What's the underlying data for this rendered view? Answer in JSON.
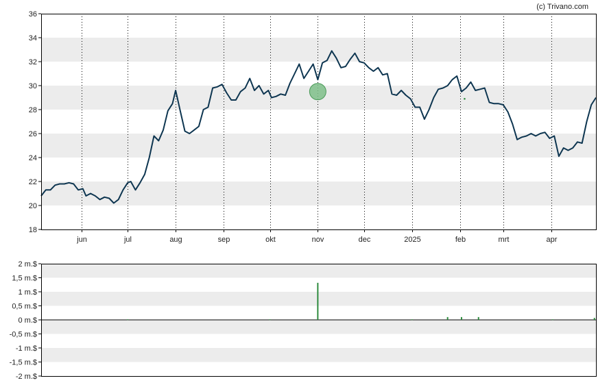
{
  "credit": "(c) Trivano.com",
  "colors": {
    "line": "#0d3550",
    "band": "#ececec",
    "volume": "#2e8b3e",
    "marker_fill": "#7fc08a",
    "marker_stroke": "#4a9a58",
    "frame": "#000000"
  },
  "chart_data": [
    {
      "type": "line",
      "title": "",
      "xlabel": "",
      "ylabel": "",
      "ylim": [
        18,
        36
      ],
      "yticks": [
        18,
        20,
        22,
        24,
        26,
        28,
        30,
        32,
        34,
        36
      ],
      "grid": "horizontal alternating bands + dotted vertical month lines",
      "xlim": [
        "2024-05-06",
        "2025-04-30"
      ],
      "x_tick_labels": [
        {
          "date": "2024-06-01",
          "label": "jun"
        },
        {
          "date": "2024-07-01",
          "label": "jul"
        },
        {
          "date": "2024-08-01",
          "label": "aug"
        },
        {
          "date": "2024-09-01",
          "label": "sep"
        },
        {
          "date": "2024-10-01",
          "label": "okt"
        },
        {
          "date": "2024-11-01",
          "label": "nov"
        },
        {
          "date": "2024-12-01",
          "label": "dec"
        },
        {
          "date": "2025-01-01",
          "label": "2025"
        },
        {
          "date": "2025-02-01",
          "label": "feb"
        },
        {
          "date": "2025-03-01",
          "label": "mrt"
        },
        {
          "date": "2025-04-01",
          "label": "apr"
        }
      ],
      "series": [
        {
          "values": [
            [
              "2024-05-06",
              20.8
            ],
            [
              "2024-05-09",
              21.3
            ],
            [
              "2024-05-12",
              21.3
            ],
            [
              "2024-05-15",
              21.7
            ],
            [
              "2024-05-18",
              21.8
            ],
            [
              "2024-05-21",
              21.8
            ],
            [
              "2024-05-24",
              21.9
            ],
            [
              "2024-05-27",
              21.8
            ],
            [
              "2024-05-30",
              21.3
            ],
            [
              "2024-06-02",
              21.4
            ],
            [
              "2024-06-04",
              20.8
            ],
            [
              "2024-06-07",
              21.0
            ],
            [
              "2024-06-10",
              20.8
            ],
            [
              "2024-06-13",
              20.5
            ],
            [
              "2024-06-16",
              20.7
            ],
            [
              "2024-06-19",
              20.6
            ],
            [
              "2024-06-22",
              20.2
            ],
            [
              "2024-06-25",
              20.5
            ],
            [
              "2024-06-28",
              21.3
            ],
            [
              "2024-07-01",
              21.9
            ],
            [
              "2024-07-03",
              22.0
            ],
            [
              "2024-07-06",
              21.3
            ],
            [
              "2024-07-09",
              21.9
            ],
            [
              "2024-07-12",
              22.6
            ],
            [
              "2024-07-15",
              24.0
            ],
            [
              "2024-07-18",
              25.8
            ],
            [
              "2024-07-21",
              25.4
            ],
            [
              "2024-07-24",
              26.3
            ],
            [
              "2024-07-27",
              27.9
            ],
            [
              "2024-07-30",
              28.5
            ],
            [
              "2024-08-01",
              29.6
            ],
            [
              "2024-08-04",
              27.9
            ],
            [
              "2024-08-07",
              26.2
            ],
            [
              "2024-08-10",
              26.0
            ],
            [
              "2024-08-13",
              26.3
            ],
            [
              "2024-08-16",
              26.6
            ],
            [
              "2024-08-19",
              28.0
            ],
            [
              "2024-08-22",
              28.2
            ],
            [
              "2024-08-25",
              29.8
            ],
            [
              "2024-08-28",
              29.9
            ],
            [
              "2024-08-31",
              30.1
            ],
            [
              "2024-09-03",
              29.4
            ],
            [
              "2024-09-06",
              28.8
            ],
            [
              "2024-09-09",
              28.8
            ],
            [
              "2024-09-12",
              29.5
            ],
            [
              "2024-09-15",
              29.8
            ],
            [
              "2024-09-18",
              30.6
            ],
            [
              "2024-09-21",
              29.6
            ],
            [
              "2024-09-24",
              30.0
            ],
            [
              "2024-09-27",
              29.3
            ],
            [
              "2024-09-30",
              29.6
            ],
            [
              "2024-10-02",
              29.0
            ],
            [
              "2024-10-05",
              29.1
            ],
            [
              "2024-10-08",
              29.3
            ],
            [
              "2024-10-11",
              29.2
            ],
            [
              "2024-10-14",
              30.2
            ],
            [
              "2024-10-17",
              31.0
            ],
            [
              "2024-10-20",
              31.8
            ],
            [
              "2024-10-23",
              30.6
            ],
            [
              "2024-10-26",
              31.2
            ],
            [
              "2024-10-29",
              31.8
            ],
            [
              "2024-11-01",
              30.5
            ],
            [
              "2024-11-04",
              31.9
            ],
            [
              "2024-11-07",
              32.1
            ],
            [
              "2024-11-10",
              32.9
            ],
            [
              "2024-11-13",
              32.3
            ],
            [
              "2024-11-16",
              31.5
            ],
            [
              "2024-11-19",
              31.6
            ],
            [
              "2024-11-22",
              32.2
            ],
            [
              "2024-11-25",
              32.7
            ],
            [
              "2024-11-28",
              32.0
            ],
            [
              "2024-12-01",
              31.9
            ],
            [
              "2024-12-04",
              31.5
            ],
            [
              "2024-12-07",
              31.2
            ],
            [
              "2024-12-10",
              31.5
            ],
            [
              "2024-12-13",
              30.9
            ],
            [
              "2024-12-16",
              31.0
            ],
            [
              "2024-12-19",
              29.3
            ],
            [
              "2024-12-22",
              29.2
            ],
            [
              "2024-12-25",
              29.6
            ],
            [
              "2024-12-28",
              29.2
            ],
            [
              "2024-12-31",
              28.9
            ],
            [
              "2025-01-03",
              28.2
            ],
            [
              "2025-01-06",
              28.2
            ],
            [
              "2025-01-09",
              27.2
            ],
            [
              "2025-01-12",
              28.0
            ],
            [
              "2025-01-15",
              29.0
            ],
            [
              "2025-01-18",
              29.7
            ],
            [
              "2025-01-21",
              29.8
            ],
            [
              "2025-01-24",
              30.0
            ],
            [
              "2025-01-27",
              30.5
            ],
            [
              "2025-01-30",
              30.8
            ],
            [
              "2025-02-02",
              29.5
            ],
            [
              "2025-02-05",
              29.8
            ],
            [
              "2025-02-08",
              30.3
            ],
            [
              "2025-02-11",
              29.6
            ],
            [
              "2025-02-14",
              29.7
            ],
            [
              "2025-02-17",
              29.8
            ],
            [
              "2025-02-20",
              28.6
            ],
            [
              "2025-02-23",
              28.5
            ],
            [
              "2025-02-26",
              28.5
            ],
            [
              "2025-03-01",
              28.4
            ],
            [
              "2025-03-04",
              27.8
            ],
            [
              "2025-03-07",
              26.8
            ],
            [
              "2025-03-10",
              25.5
            ],
            [
              "2025-03-13",
              25.7
            ],
            [
              "2025-03-16",
              25.8
            ],
            [
              "2025-03-19",
              26.0
            ],
            [
              "2025-03-22",
              25.8
            ],
            [
              "2025-03-25",
              26.0
            ],
            [
              "2025-03-28",
              26.1
            ],
            [
              "2025-03-31",
              25.6
            ],
            [
              "2025-04-03",
              25.8
            ],
            [
              "2025-04-06",
              24.1
            ],
            [
              "2025-04-09",
              24.8
            ],
            [
              "2025-04-12",
              24.6
            ],
            [
              "2025-04-15",
              24.8
            ],
            [
              "2025-04-18",
              25.3
            ],
            [
              "2025-04-21",
              25.2
            ],
            [
              "2025-04-24",
              27.0
            ],
            [
              "2025-04-27",
              28.4
            ],
            [
              "2025-04-30",
              29.0
            ]
          ]
        }
      ],
      "markers": [
        {
          "date": "2024-11-01",
          "value": 29.5
        }
      ]
    },
    {
      "type": "bar",
      "title": "",
      "ylim": [
        -2,
        2
      ],
      "yticks": [
        {
          "value": 2,
          "label": "2 m.$"
        },
        {
          "value": 1.5,
          "label": "1,5 m.$"
        },
        {
          "value": 1,
          "label": "1 m.$"
        },
        {
          "value": 0.5,
          "label": "0,5 m.$"
        },
        {
          "value": 0,
          "label": "0 m.$"
        },
        {
          "value": -0.5,
          "label": "-0,5 m.$"
        },
        {
          "value": -1,
          "label": "-1 m.$"
        },
        {
          "value": -1.5,
          "label": "-1,5 m.$"
        },
        {
          "value": -2,
          "label": "-2 m.$"
        }
      ],
      "values": [
        [
          "2024-07-01",
          0.02
        ],
        [
          "2024-10-01",
          0.02
        ],
        [
          "2024-11-01",
          1.32
        ],
        [
          "2025-01-01",
          0.02
        ],
        [
          "2025-01-24",
          0.1
        ],
        [
          "2025-02-02",
          0.1
        ],
        [
          "2025-02-13",
          0.1
        ],
        [
          "2025-04-02",
          0.02
        ],
        [
          "2025-04-29",
          0.07
        ]
      ]
    }
  ]
}
